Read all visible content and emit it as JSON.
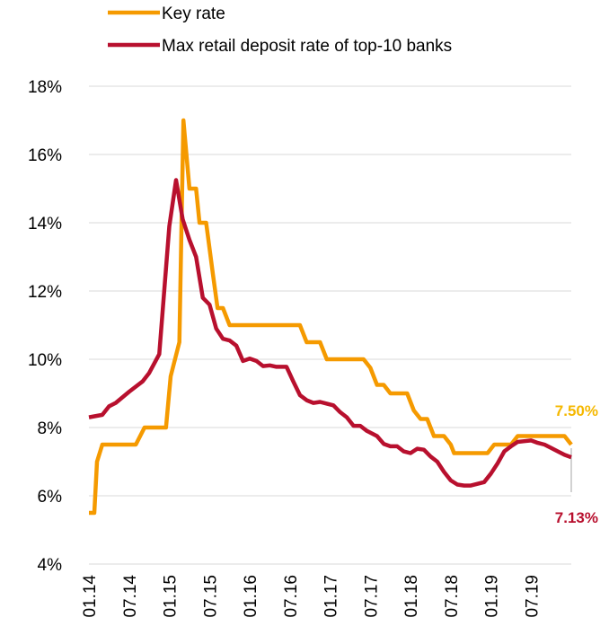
{
  "chart_data": {
    "type": "line",
    "title": "",
    "xlabel": "",
    "ylabel": "",
    "ylim": [
      4,
      18
    ],
    "y_ticks": [
      "4%",
      "6%",
      "8%",
      "10%",
      "12%",
      "14%",
      "16%",
      "18%"
    ],
    "x_tick_labels": [
      "01.14",
      "07.14",
      "01.15",
      "07.15",
      "01.16",
      "07.16",
      "01.17",
      "07.17",
      "01.18",
      "07.18",
      "01.19",
      "07.19"
    ],
    "grid": true,
    "legend_position": "top-left",
    "series": [
      {
        "name": "Key rate",
        "color": "#F59A00",
        "end_label": "7.50%",
        "end_label_color": "#F5B800",
        "values": [
          [
            0,
            5.5
          ],
          [
            0.8,
            5.5
          ],
          [
            1.2,
            7.0
          ],
          [
            2,
            7.5
          ],
          [
            7,
            7.5
          ],
          [
            8.3,
            8.0
          ],
          [
            11.5,
            8.0
          ],
          [
            12.2,
            9.5
          ],
          [
            13.5,
            10.5
          ],
          [
            14.1,
            17.0
          ],
          [
            15,
            15.0
          ],
          [
            16,
            15.0
          ],
          [
            16.5,
            14.0
          ],
          [
            17.5,
            14.0
          ],
          [
            18.5,
            12.5
          ],
          [
            19.2,
            11.5
          ],
          [
            20,
            11.5
          ],
          [
            21,
            11.0
          ],
          [
            31.5,
            11.0
          ],
          [
            32.5,
            10.5
          ],
          [
            34.5,
            10.5
          ],
          [
            35.5,
            10.0
          ],
          [
            41,
            10.0
          ],
          [
            42,
            9.75
          ],
          [
            43,
            9.25
          ],
          [
            44,
            9.25
          ],
          [
            45,
            9.0
          ],
          [
            47.5,
            9.0
          ],
          [
            48.5,
            8.5
          ],
          [
            49.5,
            8.25
          ],
          [
            50.5,
            8.25
          ],
          [
            51.5,
            7.75
          ],
          [
            53,
            7.75
          ],
          [
            54,
            7.5
          ],
          [
            54.5,
            7.25
          ],
          [
            59.5,
            7.25
          ],
          [
            60.5,
            7.5
          ],
          [
            63,
            7.5
          ],
          [
            64,
            7.75
          ],
          [
            71,
            7.75
          ],
          [
            72,
            7.5
          ]
        ]
      },
      {
        "name": "Max retail deposit rate of top-10 banks",
        "color": "#B8102E",
        "end_label": "7.13%",
        "end_label_color": "#B8102E",
        "values": [
          [
            0,
            8.3
          ],
          [
            2,
            8.37
          ],
          [
            3,
            8.62
          ],
          [
            4,
            8.72
          ],
          [
            6,
            9.05
          ],
          [
            8,
            9.35
          ],
          [
            9,
            9.6
          ],
          [
            10.5,
            10.15
          ],
          [
            12,
            13.9
          ],
          [
            13,
            15.25
          ],
          [
            14,
            14.1
          ],
          [
            15,
            13.5
          ],
          [
            16,
            13.0
          ],
          [
            17,
            11.8
          ],
          [
            18,
            11.6
          ],
          [
            19,
            10.9
          ],
          [
            20,
            10.6
          ],
          [
            21,
            10.55
          ],
          [
            22,
            10.4
          ],
          [
            23,
            9.95
          ],
          [
            24,
            10.02
          ],
          [
            25,
            9.95
          ],
          [
            26,
            9.8
          ],
          [
            27,
            9.82
          ],
          [
            28,
            9.78
          ],
          [
            29.5,
            9.78
          ],
          [
            30.5,
            9.35
          ],
          [
            31.5,
            8.95
          ],
          [
            32.5,
            8.8
          ],
          [
            33.5,
            8.72
          ],
          [
            34.5,
            8.75
          ],
          [
            35.5,
            8.7
          ],
          [
            36.5,
            8.65
          ],
          [
            37.5,
            8.45
          ],
          [
            38.5,
            8.3
          ],
          [
            39.5,
            8.05
          ],
          [
            40.5,
            8.05
          ],
          [
            41.5,
            7.9
          ],
          [
            43,
            7.75
          ],
          [
            44,
            7.52
          ],
          [
            45,
            7.45
          ],
          [
            46,
            7.45
          ],
          [
            47,
            7.3
          ],
          [
            48,
            7.25
          ],
          [
            49,
            7.38
          ],
          [
            50,
            7.35
          ],
          [
            51,
            7.15
          ],
          [
            52,
            7.0
          ],
          [
            53,
            6.7
          ],
          [
            54,
            6.45
          ],
          [
            55,
            6.33
          ],
          [
            56,
            6.3
          ],
          [
            57,
            6.3
          ],
          [
            58,
            6.35
          ],
          [
            59,
            6.4
          ],
          [
            60,
            6.65
          ],
          [
            61,
            6.95
          ],
          [
            62,
            7.3
          ],
          [
            63,
            7.45
          ],
          [
            64,
            7.58
          ],
          [
            65,
            7.6
          ],
          [
            66,
            7.62
          ],
          [
            67,
            7.55
          ],
          [
            68,
            7.5
          ],
          [
            69,
            7.4
          ],
          [
            70,
            7.3
          ],
          [
            71,
            7.2
          ],
          [
            72,
            7.13
          ]
        ]
      }
    ]
  }
}
